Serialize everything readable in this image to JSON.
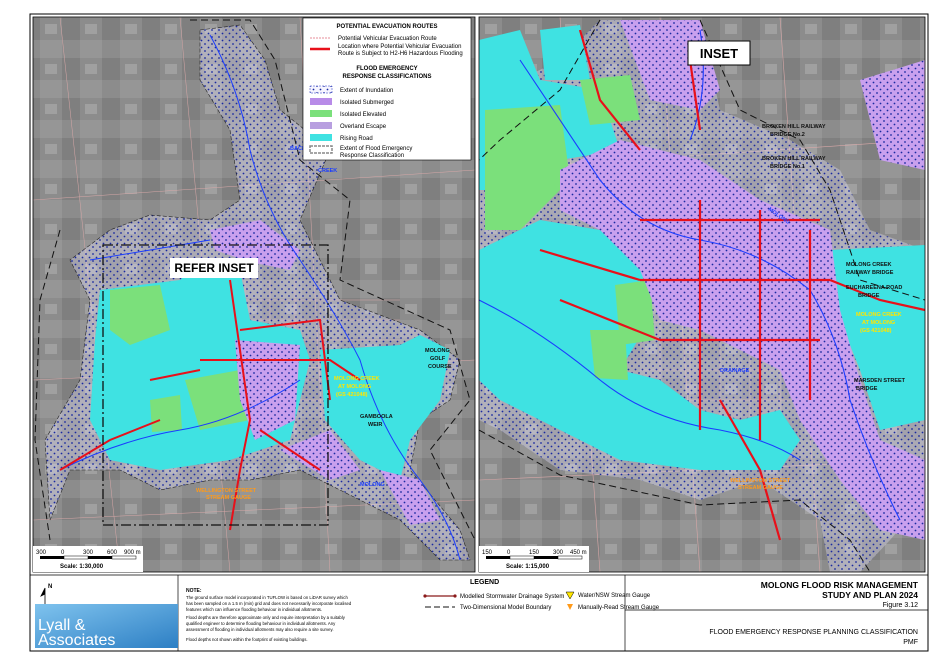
{
  "legend_box": {
    "title": "POTENTIAL EVACUATION ROUTES",
    "route": "Potential Vehicular Evacuation Route",
    "hazard": [
      "Location where Potential Vehicular Evacuation",
      "Route is Subject to H2-H6 Hazardous Flooding"
    ],
    "class_title": [
      "FLOOD EMERGENCY",
      "RESPONSE CLASSIFICATIONS"
    ],
    "items": [
      "Extent of Inundation",
      "Isolated Submerged",
      "Isolated Elevated",
      "Overland Escape",
      "Rising Road"
    ],
    "extent": [
      "Extent of Flood Emergency",
      "Response Classification"
    ]
  },
  "left_map": {
    "refer_inset": "REFER INSET",
    "back_creek": [
      "BACK",
      "CREEK"
    ],
    "golf_course": [
      "MOLONG",
      "GOLF",
      "COURSE"
    ],
    "gauge": [
      "MOLONG CREEK",
      "AT MOLONG",
      "(GS 421048)"
    ],
    "weir": [
      "GAMBOOLA",
      "WEIR"
    ],
    "stream_gauge": [
      "WELLINGTON STREET",
      "STREAM GAUGE"
    ],
    "creek": "MOLONG",
    "scale_ticks": [
      "300",
      "0",
      "300",
      "600",
      "900 m"
    ],
    "scale": "Scale: 1:30,000"
  },
  "inset_map": {
    "title": "INSET",
    "bridge_2": [
      "BROKEN HILL RAILWAY",
      "BRIDGE No.2"
    ],
    "bridge_1": [
      "BROKEN HILL RAILWAY",
      "BRIDGE No.1"
    ],
    "railway_bridge": [
      "MOLONG CREEK",
      "RAILWAY BRIDGE"
    ],
    "road_bridge": [
      "EUCHAREENA ROAD",
      "BRIDGE"
    ],
    "gauge": [
      "MOLONG CREEK",
      "AT MOLONG",
      "(GS 421048)"
    ],
    "marsden": [
      "MARSDEN STREET",
      "BRIDGE"
    ],
    "stream_gauge": [
      "WELLINGTON STREET",
      "STREAM GAUGE"
    ],
    "drainage": "DRAINAGE",
    "creek": "MOLONG",
    "scale_ticks": [
      "150",
      "0",
      "150",
      "300",
      "450 m"
    ],
    "scale": "Scale: 1:15,000"
  },
  "footer": {
    "north": "N",
    "logo": [
      "Lyall &",
      "Associates"
    ],
    "note_title": "NOTE:",
    "note": [
      "The ground surface model incorporated in TUFLOW is based on LiDAR survey which",
      "has been sampled on a 1.5 m (min) grid and does not necessarily incorporate localised",
      "features which can influence flooding behaviour in individual allotments.",
      "Flood depths are therefore approximate only and require interpretation by a suitably",
      "qualified engineer to determine flooding behaviour in individual allotments. Any",
      "assessment of flooding in individual allotments may also require a site survey.",
      "Flood depths not shown within the footprint of existing buildings."
    ],
    "legend_title": "LEGEND",
    "legend": [
      "Modelled Stormwater Drainage System",
      "Two-Dimensional Model Boundary",
      "Water/NSW Stream Gauge",
      "Manually-Read Stream Gauge"
    ],
    "study": [
      "MOLONG FLOOD RISK MANAGEMENT",
      "STUDY AND PLAN 2024"
    ],
    "figure": "Figure 3.12",
    "caption": "FLOOD EMERGENCY RESPONSE PLANNING CLASSIFICATION",
    "event": "PMF"
  }
}
